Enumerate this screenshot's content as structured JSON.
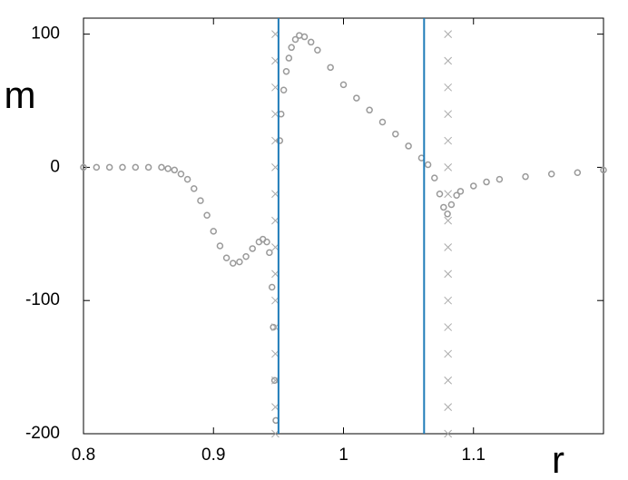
{
  "chart_data": {
    "type": "scatter",
    "x_label": "r",
    "y_label": "m",
    "xlim": [
      0.8,
      1.2
    ],
    "ylim": [
      -200,
      112
    ],
    "xticks": [
      0.8,
      0.9,
      1,
      1.1
    ],
    "yticks": [
      -200,
      -100,
      0,
      100
    ],
    "series": [
      {
        "marker": "circle",
        "color": "#9a9a9a",
        "x": [
          0.8,
          0.81,
          0.82,
          0.83,
          0.84,
          0.85,
          0.86,
          0.865,
          0.87,
          0.875,
          0.88,
          0.885,
          0.89,
          0.895,
          0.9,
          0.905,
          0.91,
          0.915,
          0.92,
          0.925,
          0.93,
          0.935,
          0.938,
          0.941,
          0.943,
          0.945,
          0.946,
          0.947,
          0.948,
          0.951,
          0.952,
          0.954,
          0.956,
          0.958,
          0.96,
          0.963,
          0.966,
          0.97,
          0.975,
          0.98,
          0.99,
          1,
          1.01,
          1.02,
          1.03,
          1.04,
          1.05,
          1.06,
          1.065,
          1.07,
          1.074,
          1.077,
          1.08,
          1.083,
          1.087,
          1.09,
          1.1,
          1.11,
          1.12,
          1.14,
          1.16,
          1.18,
          1.2
        ],
        "values": [
          0,
          0,
          0,
          0,
          0,
          0,
          0,
          -1,
          -2,
          -5,
          -9,
          -16,
          -25,
          -36,
          -48,
          -59,
          -68,
          -72,
          -71,
          -67,
          -61,
          -56,
          -54,
          -56,
          -64,
          -90,
          -120,
          -160,
          -190,
          20,
          40,
          58,
          72,
          82,
          90,
          96,
          99,
          98,
          94,
          88,
          75,
          62,
          52,
          43,
          34,
          25,
          16,
          7,
          2,
          -8,
          -20,
          -30,
          -35,
          -28,
          -21,
          -18,
          -14,
          -11,
          -9,
          -7,
          -5,
          -4,
          -2
        ]
      },
      {
        "marker": "x",
        "color": "#aaaaaa",
        "x": [
          0.9476,
          0.9476,
          0.9476,
          0.9476,
          0.9476,
          0.9476,
          0.9476,
          0.9476,
          0.9476,
          0.9476,
          0.9476,
          0.9476,
          0.9476,
          0.9476,
          0.9476,
          0.9476
        ],
        "values": [
          -200,
          -180,
          -160,
          -140,
          -120,
          -100,
          -80,
          -60,
          -40,
          -20,
          0,
          20,
          40,
          60,
          80,
          100
        ]
      },
      {
        "marker": "x",
        "color": "#aaaaaa",
        "x": [
          1.0804,
          1.0804,
          1.0804,
          1.0804,
          1.0804,
          1.0804,
          1.0804,
          1.0804,
          1.0804,
          1.0804,
          1.0804,
          1.0804,
          1.0804,
          1.0804,
          1.0804,
          1.0804
        ],
        "values": [
          -200,
          -180,
          -160,
          -140,
          -120,
          -100,
          -80,
          -60,
          -40,
          -20,
          0,
          20,
          40,
          60,
          80,
          100
        ]
      }
    ],
    "vlines": [
      {
        "x": 0.95,
        "color": "#1f7bb8"
      },
      {
        "x": 1.062,
        "color": "#1f7bb8"
      }
    ]
  }
}
